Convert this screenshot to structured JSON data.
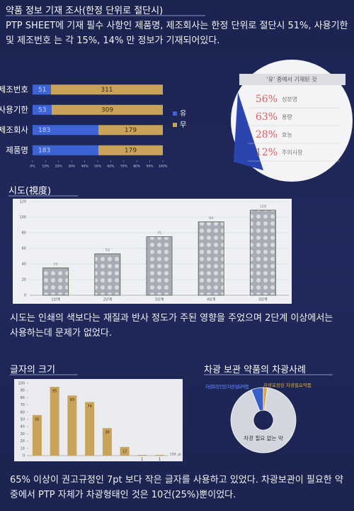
{
  "sections": [
    {
      "title": "약품 정보 기재 조사(한정 단위로 절단시)",
      "text": "PTP SHEET에 기재 필수 사항인 제품명, 제조회사는 한정 단위로 절단시 51%, 사용기한 및 제조번호 는 각 15%, 14% 만 정보가 기재되어있다."
    },
    {
      "title": "시도(視度)",
      "text": "시도는 인쇄의 색보다는 재질과 반사 정도가 주된 영향을 주었으며 2단계 이상에서는 사용하는데 문제가 없었다."
    },
    {
      "title": "글자의 크기"
    },
    {
      "title": "차광 보관 약품의 차광사례"
    }
  ],
  "footer_text": "65% 이상이 권고규정인 7pt 보다 작은 글자를 사용하고 있었다. 차광보관이 필요한 약 중에서 PTP 자체가 차광형태인 것은 10건(25%)뿐이었다.",
  "callout": {
    "title": "'유' 중에서 기재된 것",
    "items": [
      {
        "percent": "56%",
        "label": "성분명"
      },
      {
        "percent": "63%",
        "label": "용량"
      },
      {
        "percent": "28%",
        "label": "효능"
      },
      {
        "percent": "12%",
        "label": "주의사항"
      }
    ]
  },
  "chart_data": [
    {
      "type": "hbar",
      "stack": "percent",
      "categories": [
        "제조번호",
        "사용기한",
        "제조회사",
        "제품명"
      ],
      "series": [
        {
          "name": "유",
          "color": "#3d63d4",
          "values": [
            51,
            53,
            183,
            183
          ]
        },
        {
          "name": "무",
          "color": "#c9a35a",
          "values": [
            311,
            309,
            179,
            179
          ]
        }
      ],
      "xlim": [
        0,
        100
      ],
      "xticks": [
        {
          "value": 0,
          "label": "0%"
        },
        {
          "value": 10,
          "label": "10%"
        },
        {
          "value": 20,
          "label": "20%"
        },
        {
          "value": 30,
          "label": "30%"
        },
        {
          "value": 40,
          "label": "40%"
        },
        {
          "value": 50,
          "label": "50%"
        },
        {
          "value": 60,
          "label": "60%"
        },
        {
          "value": 70,
          "label": "70%"
        },
        {
          "value": 80,
          "label": "80%"
        },
        {
          "value": 90,
          "label": "90%"
        },
        {
          "value": 100,
          "label": "100%"
        }
      ],
      "legend": "right"
    },
    {
      "type": "bar",
      "categories": [
        "1단계",
        "2단계",
        "3단계",
        "4단계",
        "5단계"
      ],
      "values": [
        35,
        53,
        75,
        94,
        109
      ],
      "color": "#9aa0a8",
      "ylim": [
        0,
        120
      ],
      "yticks": [
        0,
        20,
        40,
        60,
        80,
        100,
        120
      ],
      "grid": true
    },
    {
      "type": "bar",
      "categories": [
        null,
        null,
        null,
        null,
        null,
        null,
        null,
        null
      ],
      "values": [
        56,
        95,
        83,
        74,
        38,
        12,
        1,
        1
      ],
      "color": "#c9a35a",
      "ylim": [
        0,
        100
      ],
      "yticks": [
        0,
        10,
        20,
        30,
        40,
        50,
        60,
        70,
        80,
        90,
        100
      ],
      "x_label": "단위: pt",
      "grid": false
    },
    {
      "type": "donut",
      "categories": [
        "차광포장 안된 차광 필요약품",
        "차광포장된 차광필요약품",
        "차광 필요 없는 약"
      ],
      "values": [
        6,
        2,
        92
      ],
      "colors": [
        "#3a5fc8",
        "#d9a441",
        "#d3d6de"
      ]
    }
  ]
}
